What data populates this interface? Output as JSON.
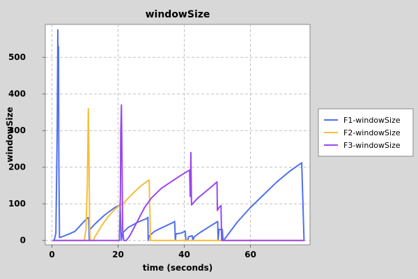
{
  "chart_data": {
    "type": "line",
    "title": "windowSize",
    "xlabel": "time (seconds)",
    "ylabel": "windowSize",
    "xlim": [
      -2,
      78
    ],
    "ylim": [
      -12,
      590
    ],
    "xticks": [
      0,
      20,
      40,
      60
    ],
    "yticks": [
      0,
      100,
      200,
      300,
      400,
      500
    ],
    "grid": true,
    "legend_position": "right",
    "series": [
      {
        "name": "F1-windowSize",
        "color": "#4f6ff0",
        "points": [
          [
            0.2,
            0
          ],
          [
            0.7,
            0
          ],
          [
            1.2,
            20
          ],
          [
            1.6,
            300
          ],
          [
            1.8,
            575
          ],
          [
            1.9,
            410
          ],
          [
            2.0,
            530
          ],
          [
            2.1,
            200
          ],
          [
            2.3,
            8
          ],
          [
            3,
            10
          ],
          [
            5,
            17
          ],
          [
            7,
            25
          ],
          [
            9,
            45
          ],
          [
            10.8,
            62
          ],
          [
            11.1,
            62
          ],
          [
            11.3,
            0
          ],
          [
            11.5,
            30
          ],
          [
            13,
            45
          ],
          [
            16,
            70
          ],
          [
            19,
            90
          ],
          [
            20.6,
            97
          ],
          [
            21.0,
            0
          ],
          [
            21.3,
            20
          ],
          [
            23,
            35
          ],
          [
            26,
            50
          ],
          [
            28.7,
            60
          ],
          [
            29.0,
            63
          ],
          [
            29.1,
            0
          ],
          [
            29.4,
            12
          ],
          [
            31,
            25
          ],
          [
            34,
            38
          ],
          [
            36.8,
            50
          ],
          [
            37.1,
            52
          ],
          [
            37.3,
            0
          ],
          [
            37.5,
            18
          ],
          [
            39,
            20
          ],
          [
            40.3,
            25
          ],
          [
            40.5,
            0
          ],
          [
            41.0,
            0
          ],
          [
            41.3,
            10
          ],
          [
            42.4,
            13
          ],
          [
            42.6,
            0
          ],
          [
            43,
            10
          ],
          [
            45,
            23
          ],
          [
            48,
            40
          ],
          [
            49.8,
            50
          ],
          [
            50.1,
            52
          ],
          [
            50.2,
            0
          ],
          [
            50.5,
            30
          ],
          [
            51.5,
            30
          ],
          [
            51.7,
            0
          ],
          [
            52.3,
            5
          ],
          [
            56,
            50
          ],
          [
            60,
            90
          ],
          [
            64,
            125
          ],
          [
            68,
            160
          ],
          [
            72,
            190
          ],
          [
            75.5,
            212
          ],
          [
            76.2,
            0
          ]
        ]
      },
      {
        "name": "F2-windowSize",
        "color": "#f6bd38",
        "points": [
          [
            0.2,
            0
          ],
          [
            9.8,
            0
          ],
          [
            10.3,
            30
          ],
          [
            10.7,
            150
          ],
          [
            11.0,
            360
          ],
          [
            11.2,
            230
          ],
          [
            11.4,
            30
          ],
          [
            11.6,
            0
          ],
          [
            12.5,
            0
          ],
          [
            13,
            10
          ],
          [
            15,
            40
          ],
          [
            17,
            65
          ],
          [
            19,
            85
          ],
          [
            20.6,
            97
          ],
          [
            21.5,
            100
          ],
          [
            23,
            115
          ],
          [
            25,
            133
          ],
          [
            27,
            150
          ],
          [
            29.4,
            165
          ],
          [
            29.8,
            0
          ],
          [
            35,
            0
          ],
          [
            45,
            0
          ],
          [
            55,
            0
          ],
          [
            65,
            0
          ],
          [
            76.4,
            0
          ]
        ]
      },
      {
        "name": "F3-windowSize",
        "color": "#9b46ef",
        "points": [
          [
            0.2,
            0
          ],
          [
            20.4,
            0
          ],
          [
            20.7,
            120
          ],
          [
            20.8,
            290
          ],
          [
            21.0,
            370
          ],
          [
            21.2,
            210
          ],
          [
            21.4,
            30
          ],
          [
            21.7,
            0
          ],
          [
            22.5,
            0
          ],
          [
            23.5,
            12
          ],
          [
            26,
            55
          ],
          [
            28,
            90
          ],
          [
            30,
            115
          ],
          [
            33,
            142
          ],
          [
            36,
            160
          ],
          [
            39,
            178
          ],
          [
            41.6,
            192
          ],
          [
            41.8,
            120
          ],
          [
            42.0,
            240
          ],
          [
            42.2,
            97
          ],
          [
            44,
            115
          ],
          [
            46,
            130
          ],
          [
            48,
            145
          ],
          [
            49.9,
            160
          ],
          [
            50.0,
            82
          ],
          [
            50.5,
            90
          ],
          [
            51.1,
            95
          ],
          [
            51.3,
            0
          ],
          [
            55,
            0
          ],
          [
            65,
            0
          ],
          [
            76.4,
            0
          ]
        ]
      }
    ]
  }
}
